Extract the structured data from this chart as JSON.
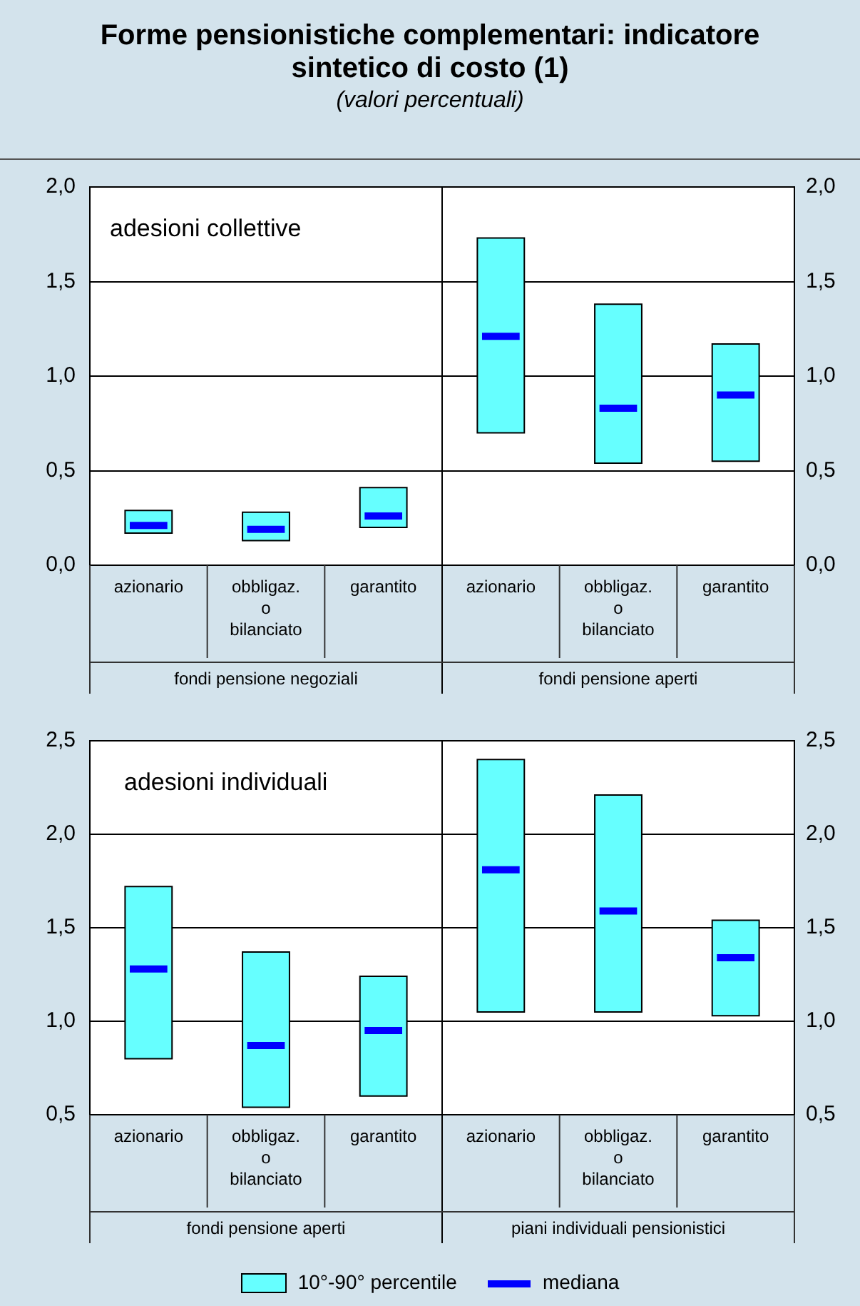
{
  "chart_data": [
    {
      "type": "box",
      "title": "Forme pensionistiche complementari: indicatore sintetico di costo (1)",
      "subtitle": "(valori percentuali)",
      "categories": [
        "azionario",
        "obbligaz. o bilanciato",
        "garantito",
        "azionario",
        "obbligaz. o bilanciato",
        "garantito"
      ],
      "series": [
        {
          "color": "#66ffff",
          "boxes": [
            {
              "low": 0.17,
              "q1": 0.17,
              "median": 0.21,
              "q3": 0.29,
              "high": 0.29
            },
            {
              "low": 0.13,
              "q1": 0.13,
              "median": 0.19,
              "q3": 0.28,
              "high": 0.28
            },
            {
              "low": 0.2,
              "q1": 0.2,
              "median": 0.26,
              "q3": 0.41,
              "high": 0.41
            },
            {
              "low": 0.7,
              "q1": 0.7,
              "median": 1.21,
              "q3": 1.73,
              "high": 1.73
            },
            {
              "low": 0.54,
              "q1": 0.54,
              "median": 0.83,
              "q3": 1.38,
              "high": 1.38
            },
            {
              "low": 0.55,
              "q1": 0.55,
              "median": 0.9,
              "q3": 1.17,
              "high": 1.17
            }
          ]
        }
      ],
      "ylim": [
        0,
        2
      ],
      "yticks": [
        {
          "value": 0,
          "label": "0,0"
        },
        {
          "value": 0.5,
          "label": "0,5"
        },
        {
          "value": 1,
          "label": "1,0"
        },
        {
          "value": 1.5,
          "label": "1,5"
        },
        {
          "value": 2,
          "label": "2,0"
        }
      ],
      "y2lim": [
        0,
        2
      ],
      "y2ticks": [
        {
          "value": 0,
          "label": "0,0"
        },
        {
          "value": 0.5,
          "label": "0,5"
        },
        {
          "value": 1,
          "label": "1,0"
        },
        {
          "value": 1.5,
          "label": "1,5"
        },
        {
          "value": 2,
          "label": "2,0"
        }
      ],
      "grid": "y",
      "annotations": [
        "adesioni collettive",
        "fondi pensione negoziali",
        "fondi pensione aperti"
      ]
    },
    {
      "type": "box",
      "categories": [
        "azionario",
        "obbligaz. o bilanciato",
        "garantito",
        "azionario",
        "obbligaz. o bilanciato",
        "garantito"
      ],
      "series": [
        {
          "name": "10°-90° percentile",
          "color": "#66ffff",
          "boxes": [
            {
              "low": 0.8,
              "q1": 0.8,
              "median": 1.28,
              "q3": 1.72,
              "high": 1.72
            },
            {
              "low": 0.54,
              "q1": 0.54,
              "median": 0.87,
              "q3": 1.37,
              "high": 1.37
            },
            {
              "low": 0.6,
              "q1": 0.6,
              "median": 0.95,
              "q3": 1.24,
              "high": 1.24
            },
            {
              "low": 1.05,
              "q1": 1.05,
              "median": 1.81,
              "q3": 2.4,
              "high": 2.4
            },
            {
              "low": 1.05,
              "q1": 1.05,
              "median": 1.59,
              "q3": 2.21,
              "high": 2.21
            },
            {
              "low": 1.03,
              "q1": 1.03,
              "median": 1.34,
              "q3": 1.54,
              "high": 1.54
            }
          ]
        }
      ],
      "ylim": [
        0.5,
        2.5
      ],
      "yticks": [
        {
          "value": 0.5,
          "label": "0,5"
        },
        {
          "value": 1,
          "label": "1,0"
        },
        {
          "value": 1.5,
          "label": "1,5"
        },
        {
          "value": 2,
          "label": "2,0"
        },
        {
          "value": 2.5,
          "label": "2,5"
        }
      ],
      "y2lim": [
        0.5,
        2.5
      ],
      "y2ticks": [
        {
          "value": 0.5,
          "label": "0,5"
        },
        {
          "value": 1,
          "label": "1,0"
        },
        {
          "value": 1.5,
          "label": "1,5"
        },
        {
          "value": 2,
          "label": "2,0"
        },
        {
          "value": 2.5,
          "label": "2,5"
        }
      ],
      "grid": "y",
      "legend": "bottom",
      "annotations": [
        "adesioni individuali",
        "fondi pensione aperti",
        "piani individuali pensionistici",
        "mediana"
      ]
    }
  ]
}
